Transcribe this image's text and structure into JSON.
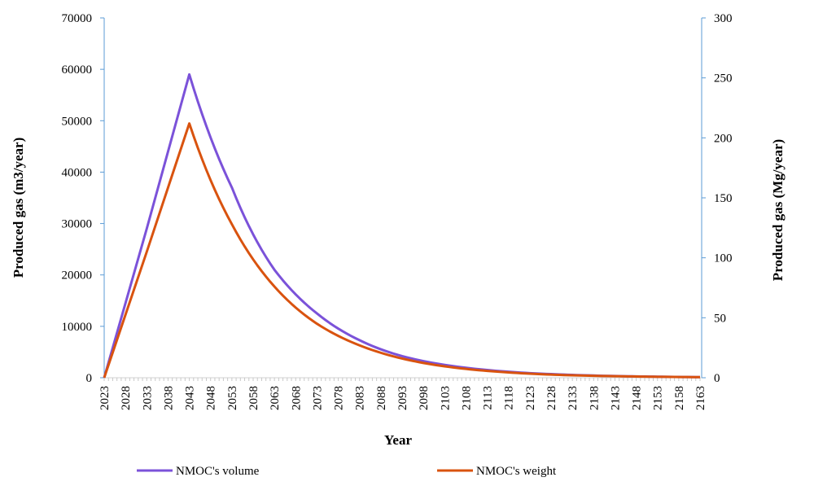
{
  "chart_data": {
    "type": "line",
    "xlabel": "Year",
    "ylabel_left": "Produced gas (m3/year)",
    "ylabel_right": "Produced gas (Mg/year)",
    "x_range": [
      2023,
      2163
    ],
    "x_tick_labels": [
      "2023",
      "2028",
      "2033",
      "2038",
      "2043",
      "2048",
      "2053",
      "2058",
      "2063",
      "2068",
      "2073",
      "2078",
      "2083",
      "2088",
      "2093",
      "2098",
      "2103",
      "2108",
      "2113",
      "2118",
      "2123",
      "2128",
      "2133",
      "2138",
      "2143",
      "2148",
      "2153",
      "2158",
      "2163"
    ],
    "y_left_range": [
      0,
      70000
    ],
    "y_left_ticks": [
      "0",
      "10000",
      "20000",
      "30000",
      "40000",
      "50000",
      "60000",
      "70000"
    ],
    "y_right_range": [
      0,
      300
    ],
    "y_right_ticks": [
      "0",
      "50",
      "100",
      "150",
      "200",
      "250",
      "300"
    ],
    "grid": false,
    "legend_position": "bottom",
    "series": [
      {
        "name": "NMOC's volume",
        "axis": "left",
        "color": "#7b52d9",
        "x": [
          2023,
          2033,
          2043,
          2053,
          2063,
          2073,
          2083,
          2093,
          2103,
          2113,
          2123,
          2133,
          2143,
          2153,
          2163
        ],
        "values": [
          0,
          29000,
          59000,
          37000,
          21000,
          12500,
          7300,
          4200,
          2500,
          1500,
          900,
          550,
          330,
          200,
          120
        ]
      },
      {
        "name": "NMOC's weight",
        "axis": "right",
        "color": "#d9530f",
        "x": [
          2023,
          2033,
          2043,
          2053,
          2063,
          2073,
          2083,
          2093,
          2103,
          2113,
          2123,
          2133,
          2143,
          2153,
          2163
        ],
        "values": [
          0,
          105,
          212,
          128,
          76,
          45,
          27,
          16,
          9.5,
          5.7,
          3.4,
          2.0,
          1.3,
          0.8,
          0.5
        ]
      }
    ]
  }
}
